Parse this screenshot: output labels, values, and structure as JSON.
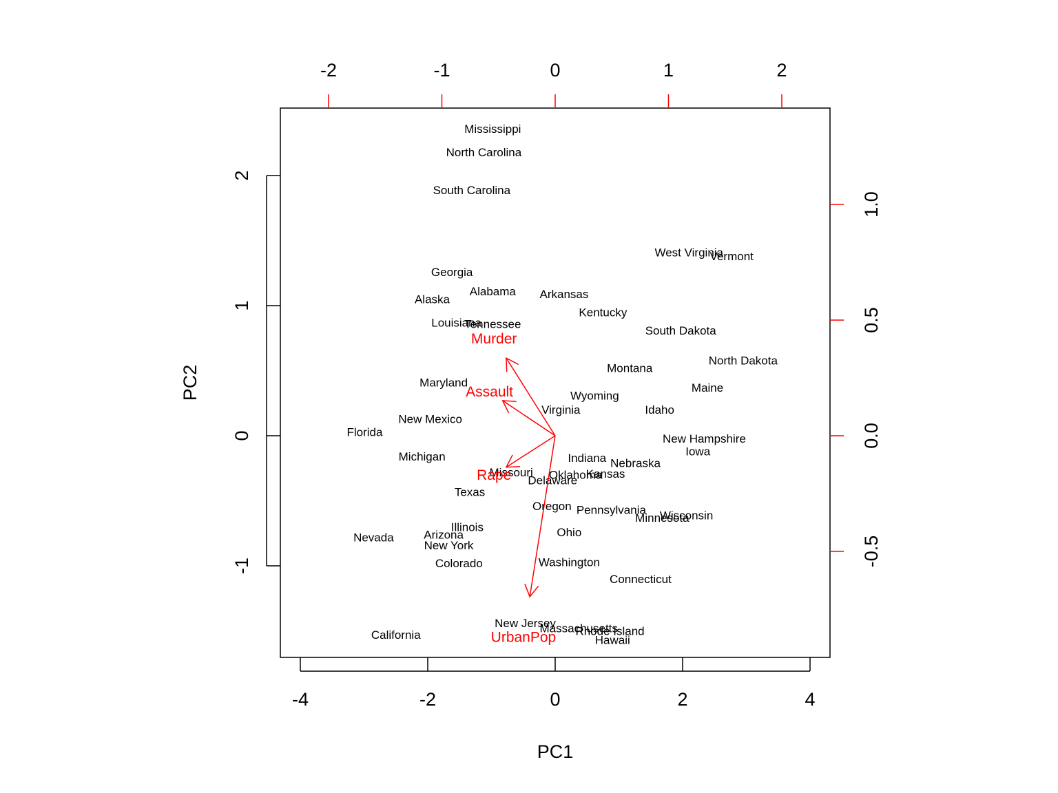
{
  "colors": {
    "text": "#000000",
    "axis": "#000000",
    "loading": "#ff0000"
  },
  "chart_data": {
    "type": "scatter",
    "title": "",
    "xlabel": "PC1",
    "ylabel": "PC2",
    "xlim": [
      -4.2,
      4.3
    ],
    "ylim": [
      -1.7,
      2.5
    ],
    "xticks": [
      -4,
      -2,
      0,
      2,
      4
    ],
    "yticks": [
      -1,
      0,
      1,
      2
    ],
    "secondary_axes": {
      "top": {
        "ticks": [
          -2,
          -1,
          0,
          1,
          2
        ],
        "color": "#ff0000"
      },
      "right": {
        "ticks": [
          -0.5,
          0.0,
          0.5,
          1.0
        ],
        "tick_labels": [
          "-0.5",
          "0.0",
          "0.5",
          "1.0"
        ],
        "color": "#ff0000"
      }
    },
    "grid": false,
    "points": [
      {
        "label": "Mississippi",
        "x": -0.98,
        "y": 2.36
      },
      {
        "label": "North Carolina",
        "x": -1.12,
        "y": 2.18
      },
      {
        "label": "South Carolina",
        "x": -1.31,
        "y": 1.89
      },
      {
        "label": "West Virginia",
        "x": 2.1,
        "y": 1.41
      },
      {
        "label": "Vermont",
        "x": 2.77,
        "y": 1.38
      },
      {
        "label": "Georgia",
        "x": -1.62,
        "y": 1.26
      },
      {
        "label": "Alabama",
        "x": -0.98,
        "y": 1.11
      },
      {
        "label": "Arkansas",
        "x": 0.14,
        "y": 1.09
      },
      {
        "label": "Alaska",
        "x": -1.93,
        "y": 1.05
      },
      {
        "label": "Kentucky",
        "x": 0.75,
        "y": 0.95
      },
      {
        "label": "Louisiana",
        "x": -1.55,
        "y": 0.87
      },
      {
        "label": "Tennessee",
        "x": -0.98,
        "y": 0.86
      },
      {
        "label": "South Dakota",
        "x": 1.97,
        "y": 0.81
      },
      {
        "label": "North Dakota",
        "x": 2.95,
        "y": 0.58
      },
      {
        "label": "Montana",
        "x": 1.17,
        "y": 0.52
      },
      {
        "label": "Maryland",
        "x": -1.75,
        "y": 0.41
      },
      {
        "label": "Maine",
        "x": 2.39,
        "y": 0.37
      },
      {
        "label": "Wyoming",
        "x": 0.62,
        "y": 0.31
      },
      {
        "label": "Virginia",
        "x": 0.09,
        "y": 0.2
      },
      {
        "label": "Idaho",
        "x": 1.64,
        "y": 0.2
      },
      {
        "label": "New Mexico",
        "x": -1.96,
        "y": 0.13
      },
      {
        "label": "Florida",
        "x": -2.99,
        "y": 0.03
      },
      {
        "label": "New Hampshire",
        "x": 2.34,
        "y": -0.02
      },
      {
        "label": "Iowa",
        "x": 2.24,
        "y": -0.12
      },
      {
        "label": "Michigan",
        "x": -2.09,
        "y": -0.16
      },
      {
        "label": "Indiana",
        "x": 0.5,
        "y": -0.17
      },
      {
        "label": "Nebraska",
        "x": 1.26,
        "y": -0.21
      },
      {
        "label": "Missouri",
        "x": -0.69,
        "y": -0.28
      },
      {
        "label": "Kansas",
        "x": 0.79,
        "y": -0.29
      },
      {
        "label": "Oklahoma",
        "x": 0.32,
        "y": -0.3
      },
      {
        "label": "Delaware",
        "x": -0.04,
        "y": -0.34
      },
      {
        "label": "Texas",
        "x": -1.34,
        "y": -0.43
      },
      {
        "label": "Oregon",
        "x": -0.05,
        "y": -0.54
      },
      {
        "label": "Pennsylvania",
        "x": 0.88,
        "y": -0.57
      },
      {
        "label": "Wisconsin",
        "x": 2.06,
        "y": -0.61
      },
      {
        "label": "Minnesota",
        "x": 1.68,
        "y": -0.63
      },
      {
        "label": "Illinois",
        "x": -1.38,
        "y": -0.7
      },
      {
        "label": "Ohio",
        "x": 0.22,
        "y": -0.74
      },
      {
        "label": "Nevada",
        "x": -2.85,
        "y": -0.78
      },
      {
        "label": "Arizona",
        "x": -1.75,
        "y": -0.76
      },
      {
        "label": "New York",
        "x": -1.67,
        "y": -0.84
      },
      {
        "label": "Washington",
        "x": 0.22,
        "y": -0.97
      },
      {
        "label": "Colorado",
        "x": -1.51,
        "y": -0.98
      },
      {
        "label": "Connecticut",
        "x": 1.34,
        "y": -1.1
      },
      {
        "label": "New Jersey",
        "x": -0.47,
        "y": -1.44
      },
      {
        "label": "Massachusetts",
        "x": 0.37,
        "y": -1.48
      },
      {
        "label": "Rhode Island",
        "x": 0.86,
        "y": -1.5
      },
      {
        "label": "California",
        "x": -2.5,
        "y": -1.53
      },
      {
        "label": "Hawaii",
        "x": 0.9,
        "y": -1.57
      }
    ],
    "loadings": [
      {
        "label": "Murder",
        "x": -0.54,
        "y": 0.42
      },
      {
        "label": "Assault",
        "x": -0.58,
        "y": 0.19
      },
      {
        "label": "UrbanPop",
        "x": -0.28,
        "y": -0.87
      },
      {
        "label": "Rape",
        "x": -0.54,
        "y": -0.17
      }
    ]
  }
}
